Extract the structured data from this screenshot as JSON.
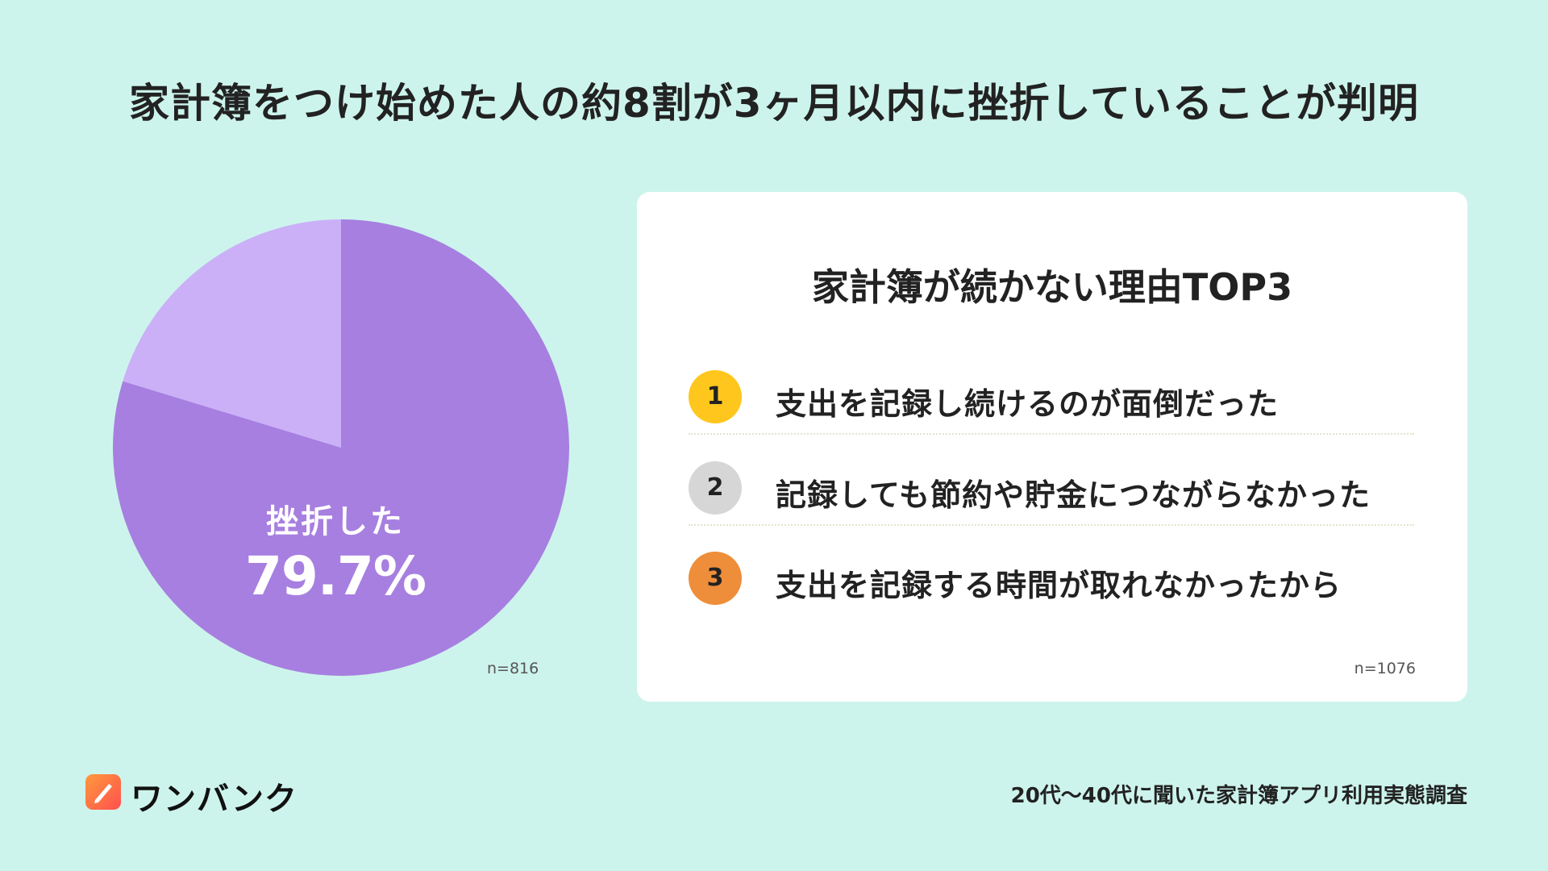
{
  "title": "家計簿をつけ始めた人の約8割が3ヶ月以内に挫折していることが判明",
  "chart_data": {
    "type": "pie",
    "slices": [
      {
        "label": "挫折した",
        "value": 79.7,
        "display": "79.7%",
        "color": "#a77fe0"
      },
      {
        "label": "",
        "value": 20.3,
        "color": "#cbb0f8"
      }
    ],
    "sample_size": "n=816"
  },
  "ranking": {
    "title": "家計簿が続かない理由TOP3",
    "items": [
      {
        "rank": "1",
        "text": "支出を記録し続けるのが面倒だった",
        "color": "#ffc61e"
      },
      {
        "rank": "2",
        "text": "記録しても節約や貯金につながらなかった",
        "color": "#d6d6d6"
      },
      {
        "rank": "3",
        "text": "支出を記録する時間が取れなかったから",
        "color": "#ee8e3a"
      }
    ],
    "sample_size": "n=1076"
  },
  "brand": {
    "name": "ワンバンク",
    "logo_icon": "pencil-icon"
  },
  "source": "20代～40代に聞いた家計簿アプリ利用実態調査"
}
